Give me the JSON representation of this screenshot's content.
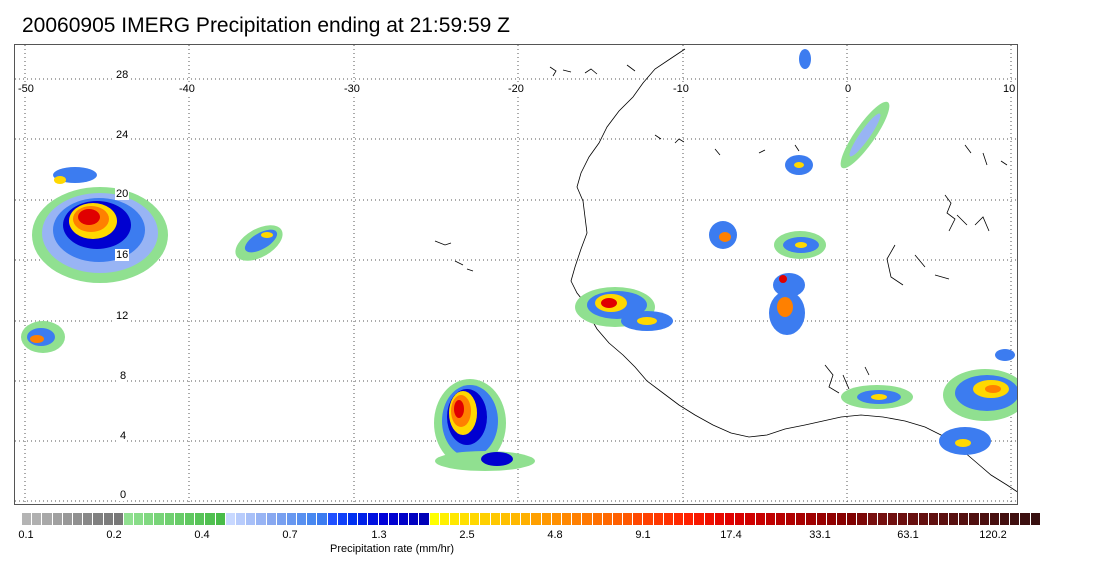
{
  "title": "20060905 IMERG Precipitation ending at 21:59:59 Z",
  "map": {
    "longitude_labels": [
      "-50",
      "-40",
      "-30",
      "-20",
      "-10",
      "0",
      "10"
    ],
    "latitude_labels": [
      "28",
      "24",
      "20",
      "16",
      "12",
      "8",
      "4",
      "0"
    ]
  },
  "colorbar": {
    "label": "Precipitation rate (mm/hr)",
    "ticks": [
      "0.1",
      "0.2",
      "0.4",
      "0.7",
      "1.3",
      "2.5",
      "4.8",
      "9.1",
      "17.4",
      "33.1",
      "63.1",
      "120.2"
    ],
    "colors": [
      "#b4b4b4",
      "#b0b0b0",
      "#a8a8a8",
      "#a0a0a0",
      "#989898",
      "#909090",
      "#888888",
      "#808080",
      "#7c7c7c",
      "#787878",
      "#90e090",
      "#88dc88",
      "#80d880",
      "#78d478",
      "#70d070",
      "#68cc68",
      "#60c860",
      "#58c458",
      "#50c050",
      "#48bc48",
      "#c8d8ff",
      "#b8ccfc",
      "#a8c0f8",
      "#98b4f4",
      "#88a8f0",
      "#78a0f0",
      "#6898f0",
      "#5890f0",
      "#4888f0",
      "#3c7cf0",
      "#2050ff",
      "#1040f8",
      "#0030f0",
      "#0020e8",
      "#0010e0",
      "#0000d8",
      "#0000d0",
      "#0000c8",
      "#0000c0",
      "#0000b8",
      "#ffff00",
      "#fff000",
      "#ffe800",
      "#ffe000",
      "#ffd800",
      "#ffd000",
      "#ffc800",
      "#ffc000",
      "#ffb800",
      "#ffb000",
      "#ffa000",
      "#ff9800",
      "#ff9000",
      "#ff8800",
      "#ff8000",
      "#ff7800",
      "#ff7000",
      "#ff6800",
      "#ff6000",
      "#ff5800",
      "#ff4800",
      "#ff4000",
      "#ff3800",
      "#ff3000",
      "#ff2800",
      "#ff2000",
      "#f81800",
      "#f01000",
      "#e80800",
      "#e00000",
      "#d80000",
      "#d00000",
      "#c80000",
      "#c00000",
      "#b80000",
      "#b00000",
      "#a80000",
      "#a00000",
      "#980000",
      "#900000",
      "#880000",
      "#800000",
      "#7c0808",
      "#781010",
      "#741010",
      "#701010",
      "#6c1010",
      "#681010",
      "#641010",
      "#601010",
      "#5c1010",
      "#581010",
      "#541010",
      "#501010",
      "#4c1010",
      "#481010",
      "#441010",
      "#401010",
      "#3c1010",
      "#381010"
    ]
  }
}
